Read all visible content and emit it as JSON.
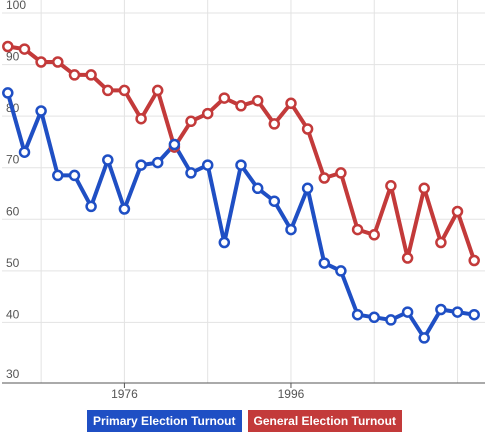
{
  "chart_data": {
    "type": "line",
    "title": "",
    "xlabel": "",
    "ylabel": "",
    "x": [
      1962,
      1964,
      1966,
      1968,
      1970,
      1972,
      1974,
      1976,
      1978,
      1980,
      1982,
      1984,
      1986,
      1988,
      1990,
      1992,
      1994,
      1996,
      1998,
      2000,
      2002,
      2004,
      2006,
      2008,
      2010,
      2012,
      2014,
      2016,
      2018
    ],
    "xlim": [
      1961.3,
      2019.3
    ],
    "ylim": [
      30,
      100
    ],
    "x_ticks": [
      1976,
      1996
    ],
    "y_ticks": [
      30,
      40,
      50,
      60,
      70,
      80,
      90,
      100
    ],
    "grid": true,
    "legend_position": "bottom-center",
    "colors": {
      "primary": "#1f4fc4",
      "general": "#c33a3a",
      "grid": "#e3e3e3",
      "axis": "#555555",
      "tick_text": "#555555"
    },
    "series": [
      {
        "name": "Primary Election Turnout",
        "color": "#1f4fc4",
        "values": [
          84.5,
          73,
          81,
          68.5,
          68.5,
          62.5,
          71.5,
          62,
          70.5,
          71,
          74.5,
          69,
          70.5,
          55.5,
          70.5,
          66,
          63.5,
          58,
          66,
          51.5,
          50,
          41.5,
          41,
          40.5,
          42,
          37,
          42.5,
          42,
          41.5
        ]
      },
      {
        "name": "General Election Turnout",
        "color": "#c33a3a",
        "values": [
          93.5,
          93,
          90.5,
          90.5,
          88,
          88,
          85,
          85,
          79.5,
          85,
          74,
          79,
          80.5,
          83.5,
          82,
          83,
          78.5,
          82.5,
          77.5,
          68,
          69,
          58,
          57,
          66.5,
          52.5,
          66,
          55.5,
          61.5,
          52
        ]
      }
    ]
  }
}
